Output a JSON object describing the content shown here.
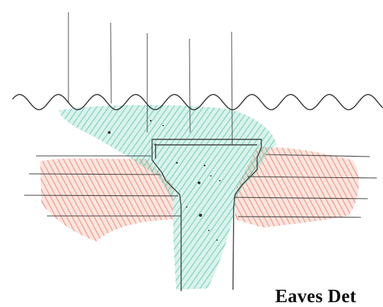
{
  "caption": "Eaves Det",
  "colors": {
    "background": "#ffffff",
    "pencil": "#3d3d3d",
    "concrete_hatch": "#57c4ab",
    "masonry_hatch": "#e8856e",
    "caption_text": "#111111"
  },
  "components": {
    "roof_sheet": "corrugated-roof-sheet",
    "rafters": "rafter-lines",
    "eaves_beam": "concrete-eaves-beam",
    "wall_courses": "masonry-courses"
  }
}
